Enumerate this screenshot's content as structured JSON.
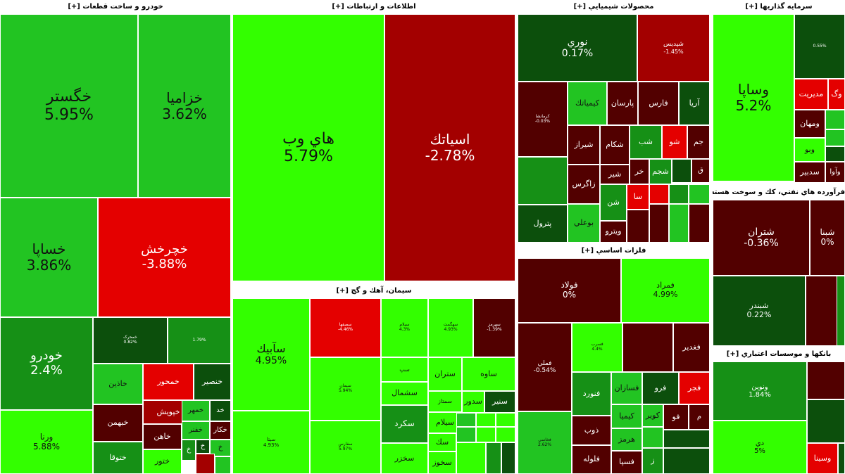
{
  "colors": {
    "bright_green": "#33ff00",
    "green": "#22c422",
    "mid_green": "#169016",
    "dark_green": "#0c4f0c",
    "bright_red": "#e40000",
    "red": "#a30000",
    "dark_red": "#520000",
    "background": "#ffffff"
  },
  "sectors": [
    {
      "id": "auto",
      "title": "خودرو و ساخت قطعات [+]",
      "tiles": [
        {
          "name": "خگستر",
          "pct": "5.95%",
          "color": "green"
        },
        {
          "name": "خزاميا",
          "pct": "3.62%",
          "color": "green"
        },
        {
          "name": "خساپا",
          "pct": "3.86%",
          "color": "green"
        },
        {
          "name": "خچرخش",
          "pct": "-3.88%",
          "color": "bright_red"
        },
        {
          "name": "خودرو",
          "pct": "2.4%",
          "color": "mid_green"
        },
        {
          "name": "ورنا",
          "pct": "5.88%",
          "color": "bright_green"
        },
        {
          "name": "خمحرک",
          "pct": "0.82%",
          "color": "dark_green"
        },
        {
          "name": "",
          "pct": "1.79%",
          "color": "mid_green"
        },
        {
          "name": "خاذين",
          "pct": "",
          "color": "green"
        },
        {
          "name": "خمحور",
          "pct": "",
          "color": "bright_red"
        },
        {
          "name": "خنصير",
          "pct": "",
          "color": "dark_green"
        },
        {
          "name": "خبهمن",
          "pct": "",
          "color": "dark_red"
        },
        {
          "name": "خپويش",
          "pct": "",
          "color": "red"
        },
        {
          "name": "خمهر",
          "pct": "",
          "color": "green"
        },
        {
          "name": "خد",
          "pct": "",
          "color": "dark_green"
        },
        {
          "name": "خاهن",
          "pct": "",
          "color": "dark_red"
        },
        {
          "name": "خفنر",
          "pct": "",
          "color": "green"
        },
        {
          "name": "خكار",
          "pct": "",
          "color": "dark_red"
        },
        {
          "name": "ختوقا",
          "pct": "",
          "color": "mid_green"
        },
        {
          "name": "ختور",
          "pct": "",
          "color": "bright_green"
        },
        {
          "name": "خ",
          "pct": "",
          "color": "mid_green"
        },
        {
          "name": "خ",
          "pct": "",
          "color": "dark_green"
        },
        {
          "name": "خ",
          "pct": "",
          "color": "green"
        },
        {
          "name": "",
          "pct": "",
          "color": "red"
        },
        {
          "name": "",
          "pct": "",
          "color": "green"
        }
      ]
    },
    {
      "id": "ict",
      "title": "اطلاعات و ارتباطات [+]",
      "tiles": [
        {
          "name": "هاي وب",
          "pct": "5.79%",
          "color": "bright_green"
        },
        {
          "name": "اسياتك",
          "pct": "-2.78%",
          "color": "red"
        }
      ]
    },
    {
      "id": "cement",
      "title": "سيمان، آهك و گچ [+]",
      "tiles": [
        {
          "name": "سآبيك",
          "pct": "4.95%",
          "color": "bright_green"
        },
        {
          "name": "سيتا",
          "pct": "4.93%",
          "color": "bright_green"
        },
        {
          "name": "سصفها",
          "pct": "-4.46%",
          "color": "bright_red"
        },
        {
          "name": "سيمان",
          "pct": "5.94%",
          "color": "bright_green"
        },
        {
          "name": "سفارس",
          "pct": "5.97%",
          "color": "bright_green"
        },
        {
          "name": "سيلام",
          "pct": "4.3%",
          "color": "bright_green"
        },
        {
          "name": "سهگمت",
          "pct": "4.93%",
          "color": "bright_green"
        },
        {
          "name": "سهرمز",
          "pct": "-1.39%",
          "color": "dark_red"
        },
        {
          "name": "سپ",
          "pct": "",
          "color": "bright_green"
        },
        {
          "name": "سشمال",
          "pct": "",
          "color": "bright_green"
        },
        {
          "name": "ستران",
          "pct": "",
          "color": "bright_green"
        },
        {
          "name": "ساوه",
          "pct": "",
          "color": "bright_green"
        },
        {
          "name": "سمتاز",
          "pct": "",
          "color": "bright_green"
        },
        {
          "name": "سيلام",
          "pct": "",
          "color": "bright_green"
        },
        {
          "name": "سدور",
          "pct": "",
          "color": "bright_green"
        },
        {
          "name": "سنير",
          "pct": "",
          "color": "dark_green"
        },
        {
          "name": "سكرد",
          "pct": "",
          "color": "mid_green"
        },
        {
          "name": "سك",
          "pct": "",
          "color": "bright_green"
        },
        {
          "name": "سخزر",
          "pct": "",
          "color": "bright_green"
        },
        {
          "name": "سخوز",
          "pct": "",
          "color": "bright_green"
        },
        {
          "name": "",
          "pct": "",
          "color": "green"
        },
        {
          "name": "",
          "pct": "",
          "color": "bright_green"
        },
        {
          "name": "",
          "pct": "",
          "color": "bright_green"
        },
        {
          "name": "",
          "pct": "",
          "color": "green"
        },
        {
          "name": "",
          "pct": "",
          "color": "bright_green"
        },
        {
          "name": "",
          "pct": "",
          "color": "bright_green"
        },
        {
          "name": "",
          "pct": "",
          "color": "bright_green"
        },
        {
          "name": "",
          "pct": "",
          "color": "mid_green"
        },
        {
          "name": "",
          "pct": "",
          "color": "dark_green"
        }
      ]
    },
    {
      "id": "chem",
      "title": "محصولات شيميايي [+]",
      "tiles": [
        {
          "name": "نوري",
          "pct": "0.17%",
          "color": "dark_green"
        },
        {
          "name": "شپديس",
          "pct": "-1.45%",
          "color": "red"
        },
        {
          "name": "كرمانشا",
          "pct": "-0.03%",
          "color": "dark_red"
        },
        {
          "name": "كيمياتك",
          "pct": "",
          "color": "green"
        },
        {
          "name": "پارسان",
          "pct": "",
          "color": "dark_red"
        },
        {
          "name": "فارس",
          "pct": "",
          "color": "dark_red"
        },
        {
          "name": "آريا",
          "pct": "",
          "color": "dark_green"
        },
        {
          "name": "شيراز",
          "pct": "",
          "color": "dark_red"
        },
        {
          "name": "شكام",
          "pct": "",
          "color": "dark_red"
        },
        {
          "name": "شب",
          "pct": "",
          "color": "mid_green"
        },
        {
          "name": "شو",
          "pct": "",
          "color": "bright_red"
        },
        {
          "name": "جم",
          "pct": "",
          "color": "dark_red"
        },
        {
          "name": "",
          "pct": "",
          "color": "mid_green"
        },
        {
          "name": "شير",
          "pct": "",
          "color": "dark_red"
        },
        {
          "name": "خر",
          "pct": "",
          "color": "dark_red"
        },
        {
          "name": "شجم",
          "pct": "",
          "color": "mid_green"
        },
        {
          "name": "",
          "pct": "",
          "color": "dark_green"
        },
        {
          "name": "ق",
          "pct": "",
          "color": "dark_red"
        },
        {
          "name": "زاگرس",
          "pct": "",
          "color": "dark_red"
        },
        {
          "name": "شن",
          "pct": "",
          "color": "mid_green"
        },
        {
          "name": "سا",
          "pct": "",
          "color": "bright_red"
        },
        {
          "name": "",
          "pct": "",
          "color": "bright_red"
        },
        {
          "name": "",
          "pct": "",
          "color": "mid_green"
        },
        {
          "name": "",
          "pct": "",
          "color": "green"
        },
        {
          "name": "پترول",
          "pct": "",
          "color": "dark_green"
        },
        {
          "name": "بوعلي",
          "pct": "",
          "color": "green"
        },
        {
          "name": "ويترو",
          "pct": "",
          "color": "dark_red"
        },
        {
          "name": "",
          "pct": "",
          "color": "dark_red"
        },
        {
          "name": "",
          "pct": "",
          "color": "dark_red"
        },
        {
          "name": "",
          "pct": "",
          "color": "green"
        },
        {
          "name": "",
          "pct": "",
          "color": "dark_red"
        }
      ]
    },
    {
      "id": "metals",
      "title": "فلزات اساسي [+]",
      "tiles": [
        {
          "name": "فولاد",
          "pct": "0%",
          "color": "dark_red"
        },
        {
          "name": "فمراد",
          "pct": "4.99%",
          "color": "bright_green"
        },
        {
          "name": "فملي",
          "pct": "-0.54%",
          "color": "dark_red"
        },
        {
          "name": "فسرب",
          "pct": "4.4%",
          "color": "bright_green"
        },
        {
          "name": "",
          "pct": "",
          "color": "dark_red"
        },
        {
          "name": "فغدير",
          "pct": "",
          "color": "dark_red"
        },
        {
          "name": "فنورد",
          "pct": "",
          "color": "mid_green"
        },
        {
          "name": "فسازان",
          "pct": "",
          "color": "green"
        },
        {
          "name": "فرو",
          "pct": "",
          "color": "dark_green"
        },
        {
          "name": "فجر",
          "pct": "",
          "color": "bright_red"
        },
        {
          "name": "فخاسي",
          "pct": "2.62%",
          "color": "green"
        },
        {
          "name": "كيميا",
          "pct": "",
          "color": "green"
        },
        {
          "name": "كوير",
          "pct": "",
          "color": "green"
        },
        {
          "name": "فو",
          "pct": "",
          "color": "dark_red"
        },
        {
          "name": "م",
          "pct": "",
          "color": "dark_red"
        },
        {
          "name": "ذوب",
          "pct": "",
          "color": "dark_red"
        },
        {
          "name": "هرمز",
          "pct": "",
          "color": "green"
        },
        {
          "name": "",
          "pct": "",
          "color": "green"
        },
        {
          "name": "",
          "pct": "",
          "color": "dark_green"
        },
        {
          "name": "فلوله",
          "pct": "",
          "color": "dark_red"
        },
        {
          "name": "فسپا",
          "pct": "",
          "color": "dark_red"
        },
        {
          "name": "ز",
          "pct": "",
          "color": "mid_green"
        },
        {
          "name": "",
          "pct": "",
          "color": "dark_green"
        }
      ]
    },
    {
      "id": "invest",
      "title": "سرمايه گذاريها [+]",
      "tiles": [
        {
          "name": "وساپا",
          "pct": "5.2%",
          "color": "bright_green"
        },
        {
          "name": "",
          "pct": "0.55%",
          "color": "dark_green"
        },
        {
          "name": "مديريت",
          "pct": "",
          "color": "bright_red"
        },
        {
          "name": "وگ",
          "pct": "",
          "color": "bright_red"
        },
        {
          "name": "ومهان",
          "pct": "",
          "color": "dark_red"
        },
        {
          "name": "",
          "pct": "",
          "color": "green"
        },
        {
          "name": "",
          "pct": "",
          "color": "green"
        },
        {
          "name": "وبو",
          "pct": "",
          "color": "bright_green"
        },
        {
          "name": "",
          "pct": "",
          "color": "dark_green"
        },
        {
          "name": "سدبير",
          "pct": "",
          "color": "dark_red"
        },
        {
          "name": "وآوا",
          "pct": "",
          "color": "dark_red"
        }
      ]
    },
    {
      "id": "petro",
      "title": "فرآورده هاي نفتي، كك و سوخت هسته اي [+]",
      "tiles": [
        {
          "name": "شتران",
          "pct": "-0.36%",
          "color": "dark_red"
        },
        {
          "name": "شبنا",
          "pct": "0%",
          "color": "dark_red"
        },
        {
          "name": "شبندر",
          "pct": "0.22%",
          "color": "dark_green"
        },
        {
          "name": "",
          "pct": "",
          "color": "dark_red"
        },
        {
          "name": "",
          "pct": "",
          "color": "mid_green"
        }
      ]
    },
    {
      "id": "banks",
      "title": "بانكها و موسسات اعتباري [+]",
      "tiles": [
        {
          "name": "ونوين",
          "pct": "1.84%",
          "color": "mid_green"
        },
        {
          "name": "",
          "pct": "",
          "color": "dark_red"
        },
        {
          "name": "دي",
          "pct": "5%",
          "color": "bright_green"
        },
        {
          "name": "",
          "pct": "",
          "color": "dark_green"
        },
        {
          "name": "وسينا",
          "pct": "",
          "color": "bright_red"
        },
        {
          "name": "",
          "pct": "",
          "color": "dark_green"
        }
      ]
    }
  ]
}
